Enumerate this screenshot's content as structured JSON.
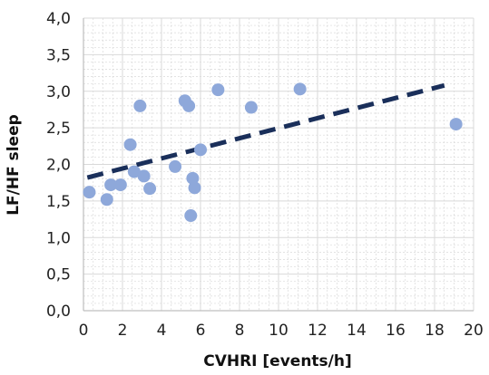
{
  "chart_data": {
    "type": "scatter",
    "title": "",
    "xlabel": "CVHRI [events/h]",
    "ylabel": "LF/HF sleep",
    "xlim": [
      0,
      20
    ],
    "ylim": [
      0,
      4
    ],
    "x_ticks": [
      0,
      2,
      4,
      6,
      8,
      10,
      12,
      14,
      16,
      18,
      20
    ],
    "x_tick_labels": [
      "0",
      "2",
      "4",
      "6",
      "8",
      "10",
      "12",
      "14",
      "16",
      "18",
      "20"
    ],
    "y_ticks": [
      0,
      0.5,
      1,
      1.5,
      2,
      2.5,
      3,
      3.5,
      4
    ],
    "y_tick_labels": [
      "0,0",
      "0,5",
      "1,0",
      "1,5",
      "2,0",
      "2,5",
      "3,0",
      "3,5",
      "4,0"
    ],
    "grid": true,
    "legend": "none",
    "series": [
      {
        "points": [
          {
            "x": 0.3,
            "y": 1.62
          },
          {
            "x": 1.2,
            "y": 1.52
          },
          {
            "x": 1.4,
            "y": 1.72
          },
          {
            "x": 1.9,
            "y": 1.72
          },
          {
            "x": 2.4,
            "y": 2.27
          },
          {
            "x": 2.6,
            "y": 1.9
          },
          {
            "x": 2.9,
            "y": 2.8
          },
          {
            "x": 3.1,
            "y": 1.84
          },
          {
            "x": 3.4,
            "y": 1.67
          },
          {
            "x": 4.7,
            "y": 1.97
          },
          {
            "x": 5.2,
            "y": 2.87
          },
          {
            "x": 5.4,
            "y": 2.8
          },
          {
            "x": 5.5,
            "y": 1.3
          },
          {
            "x": 5.6,
            "y": 1.81
          },
          {
            "x": 5.7,
            "y": 1.68
          },
          {
            "x": 6.0,
            "y": 2.2
          },
          {
            "x": 6.9,
            "y": 3.02
          },
          {
            "x": 8.6,
            "y": 2.78
          },
          {
            "x": 11.1,
            "y": 3.03
          },
          {
            "x": 19.1,
            "y": 2.55
          }
        ]
      }
    ],
    "trendline": {
      "x": [
        0.2,
        18.5
      ],
      "y": [
        1.82,
        3.08
      ]
    },
    "colors": {
      "points": "#8ea8da",
      "trendline": "#1a2f5a",
      "grid": "#d9d9d9",
      "axis": "#bfbfbf"
    }
  }
}
